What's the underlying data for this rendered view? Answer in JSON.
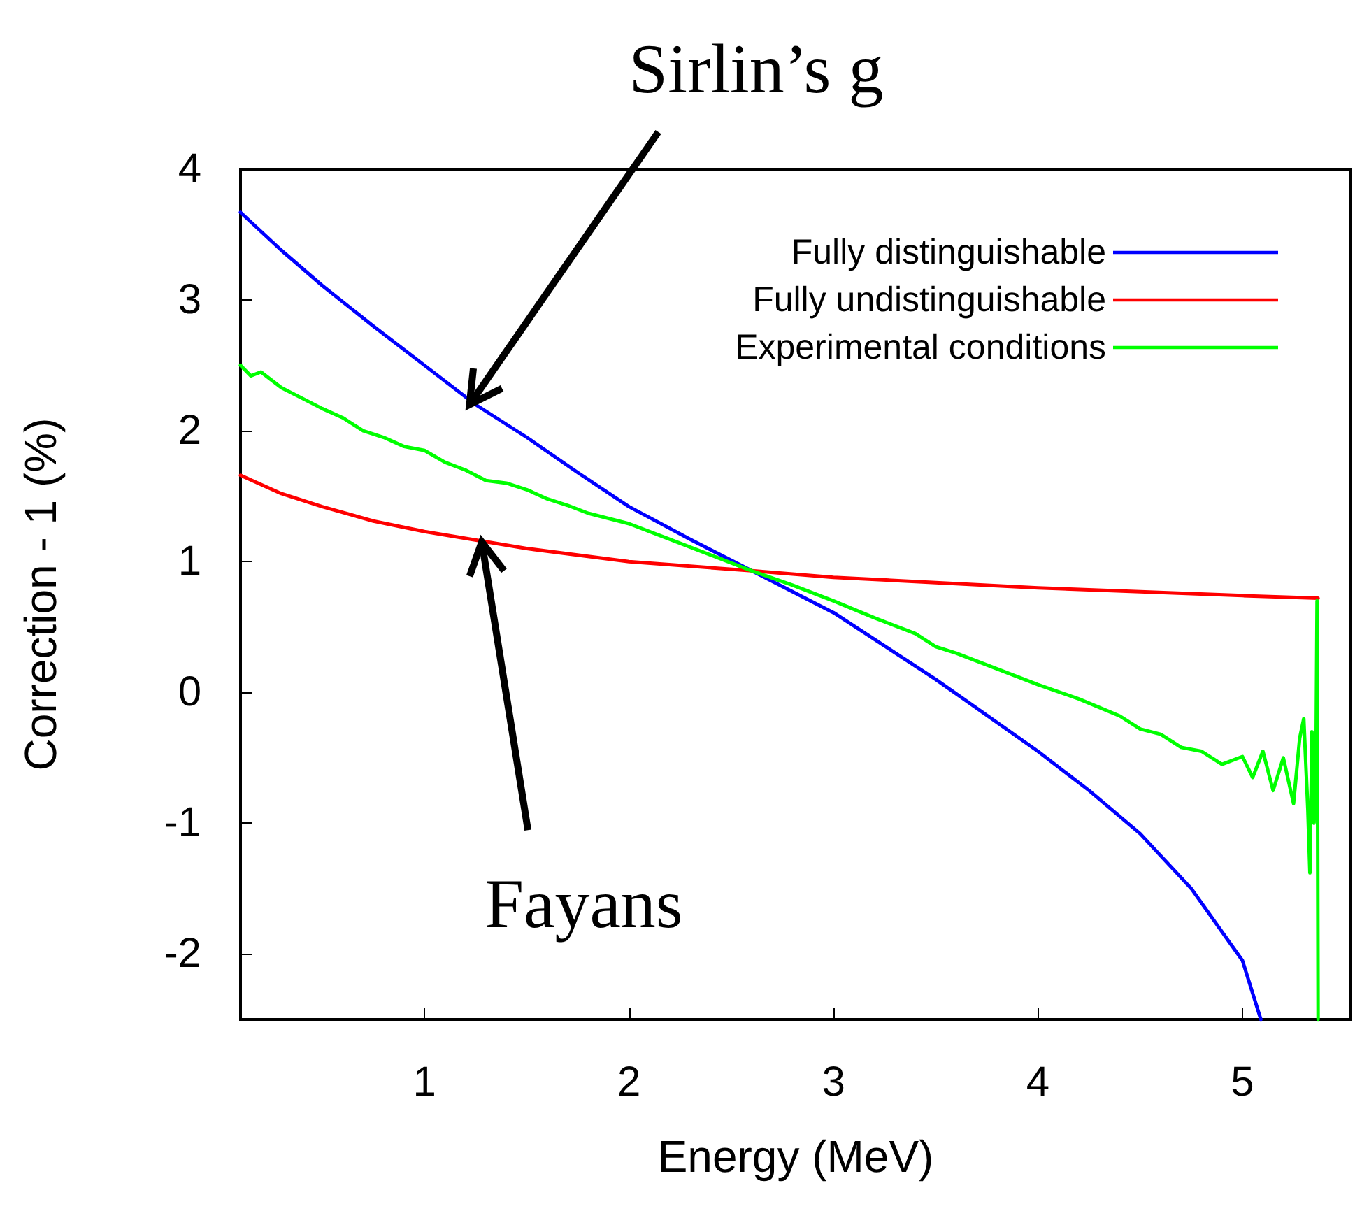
{
  "chart_data": {
    "type": "line",
    "xlabel": "Energy (MeV)",
    "ylabel": "Correction - 1 (%)",
    "xlim": [
      0.1,
      5.53
    ],
    "xticks": [
      1,
      2,
      3,
      4,
      5
    ],
    "ylim": [
      -2.5,
      4
    ],
    "yticks": [
      -2,
      -1,
      0,
      1,
      2,
      3,
      4
    ],
    "grid": false,
    "legend": "top right",
    "marker": "none",
    "line_style": "solid",
    "annotations": [
      {
        "text": "Sirlin’s g",
        "x": 1.22,
        "y": 2.2
      },
      {
        "text": "Fayans",
        "x": 1.28,
        "y": 1.15
      }
    ],
    "series": [
      {
        "name": "Fully distinguishable",
        "color": "#0000ff",
        "x": [
          0.1,
          0.3,
          0.5,
          0.75,
          1,
          1.25,
          1.5,
          1.75,
          2,
          2.3,
          2.6,
          3,
          3.5,
          4,
          4.25,
          4.5,
          4.75,
          5,
          5.09
        ],
        "values": [
          3.67,
          3.38,
          3.11,
          2.8,
          2.5,
          2.2,
          1.95,
          1.68,
          1.42,
          1.17,
          0.93,
          0.61,
          0.1,
          -0.45,
          -0.75,
          -1.08,
          -1.5,
          -2.05,
          -2.5
        ]
      },
      {
        "name": "Fully undistinguishable",
        "color": "#ff0000",
        "x": [
          0.1,
          0.3,
          0.5,
          0.75,
          1,
          1.5,
          2,
          2.6,
          3,
          3.5,
          4,
          4.5,
          5,
          5.37
        ],
        "values": [
          1.66,
          1.52,
          1.42,
          1.31,
          1.23,
          1.1,
          1.0,
          0.93,
          0.88,
          0.84,
          0.8,
          0.77,
          0.74,
          0.72
        ]
      },
      {
        "name": "Experimental conditions",
        "color": "#00ff00",
        "x": [
          0.1,
          0.15,
          0.2,
          0.3,
          0.4,
          0.5,
          0.6,
          0.7,
          0.8,
          0.9,
          1,
          1.1,
          1.2,
          1.3,
          1.4,
          1.5,
          1.6,
          1.7,
          1.8,
          1.9,
          2,
          2.2,
          2.4,
          2.6,
          2.8,
          3,
          3.2,
          3.4,
          3.5,
          3.6,
          3.8,
          4,
          4.2,
          4.4,
          4.5,
          4.6,
          4.7,
          4.8,
          4.9,
          5,
          5.05,
          5.1,
          5.15,
          5.2,
          5.25,
          5.28,
          5.3,
          5.32,
          5.33,
          5.34,
          5.35,
          5.36,
          5.365,
          5.37
        ],
        "values": [
          2.5,
          2.42,
          2.45,
          2.33,
          2.25,
          2.17,
          2.1,
          2.0,
          1.95,
          1.88,
          1.85,
          1.76,
          1.7,
          1.62,
          1.6,
          1.55,
          1.48,
          1.43,
          1.37,
          1.33,
          1.29,
          1.17,
          1.05,
          0.93,
          0.82,
          0.7,
          0.57,
          0.45,
          0.35,
          0.3,
          0.18,
          0.06,
          -0.05,
          -0.18,
          -0.28,
          -0.32,
          -0.42,
          -0.45,
          -0.55,
          -0.49,
          -0.65,
          -0.45,
          -0.75,
          -0.5,
          -0.85,
          -0.35,
          -0.2,
          -0.9,
          -1.38,
          -0.3,
          -1.0,
          -0.5,
          0.7,
          -2.5
        ]
      }
    ]
  }
}
